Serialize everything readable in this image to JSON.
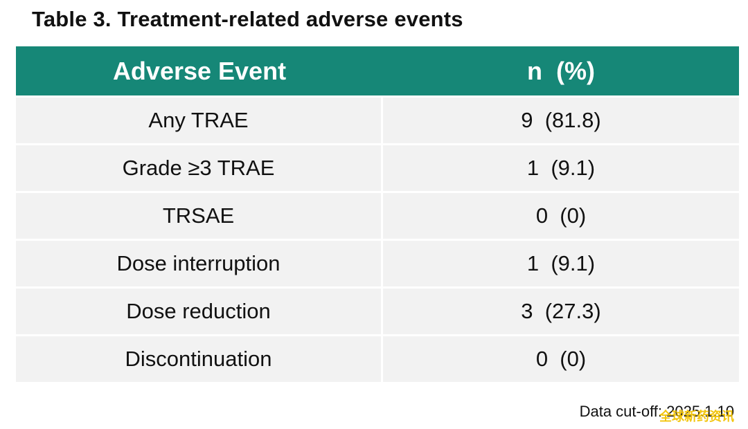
{
  "title": "Table 3. Treatment-related adverse events",
  "table": {
    "headers": [
      "Adverse Event",
      "n  (%)"
    ],
    "rows": [
      {
        "event": "Any TRAE",
        "value": "9  (81.8)"
      },
      {
        "event": "Grade ≥3 TRAE",
        "value": "1  (9.1)"
      },
      {
        "event": "TRSAE",
        "value": "0  (0)"
      },
      {
        "event": "Dose interruption",
        "value": "1  (9.1)"
      },
      {
        "event": "Dose reduction",
        "value": "3  (27.3)"
      },
      {
        "event": "Discontinuation",
        "value": "0  (0)"
      }
    ]
  },
  "footer": "Data cut-off: 2025.1.10",
  "watermark": "全球新药资讯",
  "colors": {
    "header_background": "#168777",
    "row_background": "#f2f2f2",
    "watermark": "#f2c200"
  }
}
